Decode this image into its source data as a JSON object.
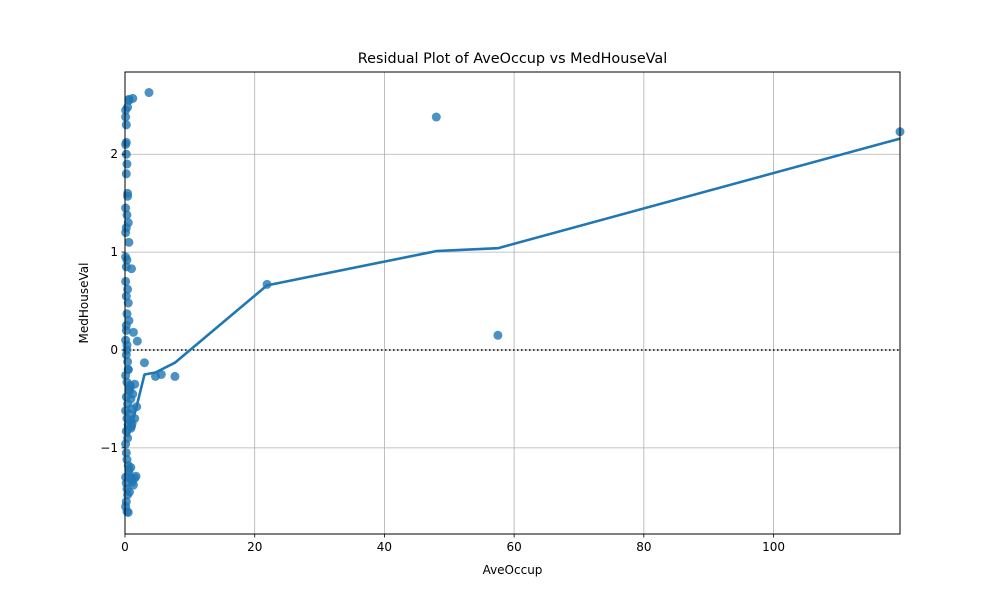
{
  "chart_data": {
    "type": "scatter",
    "title": "Residual Plot of AveOccup vs MedHouseVal",
    "xlabel": "AveOccup",
    "ylabel": "MedHouseVal",
    "xlim": [
      0,
      119.5
    ],
    "ylim": [
      -1.88,
      2.84
    ],
    "xticks": [
      0,
      20,
      40,
      60,
      80,
      100
    ],
    "yticks": [
      -1,
      0,
      1,
      2
    ],
    "grid": true,
    "legend": "none",
    "colors": {
      "series": "#1f77b4",
      "reference_line": "#000000"
    },
    "reference_line": {
      "y": 0,
      "style": "dotted"
    },
    "series": [
      {
        "kind": "points",
        "x": [
          3.7,
          48.0,
          57.5,
          119.5,
          21.9,
          3.0,
          4.7,
          5.6,
          7.7,
          1.9,
          1.3,
          1.0,
          1.2,
          1.5,
          1.8,
          1.5,
          0.6,
          1.0,
          1.3,
          1.5,
          1.7,
          0.1,
          0.1,
          0.2,
          0.1,
          0.2,
          0.3,
          0.2,
          0.4,
          0.1,
          0.3,
          0.5,
          0.2,
          0.6,
          0.1,
          0.3,
          0.2,
          0.1,
          0.4,
          0.2,
          0.5,
          0.3,
          0.6,
          0.2,
          0.1,
          0.3,
          0.2,
          0.4,
          0.5,
          0.1,
          0.3,
          0.6,
          0.2,
          0.4,
          0.1,
          0.3,
          0.5,
          0.2,
          0.4,
          0.1,
          0.2,
          0.3,
          0.5,
          0.6,
          0.1,
          0.2,
          0.3,
          0.4,
          0.2,
          0.1,
          0.3,
          0.5,
          0.2,
          0.4,
          0.6,
          0.8,
          0.9,
          1.0,
          0.7,
          0.8,
          1.1,
          0.9,
          0.7,
          1.2,
          0.8,
          1.0,
          0.6,
          0.9,
          0.7,
          1.1,
          0.8,
          0.5,
          0.3,
          0.2,
          0.4,
          0.1
        ],
        "y": [
          2.63,
          2.38,
          0.15,
          2.23,
          0.67,
          -0.13,
          -0.27,
          -0.25,
          -0.27,
          0.09,
          0.18,
          0.83,
          2.57,
          -0.35,
          -0.58,
          -0.7,
          2.56,
          -1.32,
          -1.38,
          -1.31,
          -1.29,
          2.45,
          2.38,
          2.3,
          2.1,
          2.0,
          1.9,
          1.8,
          1.57,
          1.45,
          1.38,
          1.3,
          1.25,
          1.1,
          0.95,
          0.92,
          0.85,
          0.7,
          0.62,
          0.55,
          0.48,
          0.37,
          0.3,
          0.2,
          0.1,
          0.0,
          -0.05,
          -0.12,
          -0.2,
          -0.26,
          -0.33,
          -0.4,
          -0.48,
          -0.55,
          -0.62,
          -0.7,
          -0.76,
          -0.83,
          -0.9,
          -0.96,
          -1.05,
          -1.12,
          -1.18,
          -1.22,
          -1.3,
          -1.36,
          -1.42,
          -1.48,
          -1.55,
          -1.6,
          -1.65,
          -1.66,
          2.12,
          2.48,
          2.55,
          -0.36,
          -0.5,
          -0.6,
          -0.65,
          -0.72,
          -0.75,
          -0.8,
          -0.42,
          -0.45,
          -0.38,
          -0.78,
          -1.25,
          -1.2,
          -1.45,
          -1.35,
          -1.3,
          -0.2,
          0.05,
          0.25,
          1.6,
          1.2
        ]
      },
      {
        "kind": "lowess",
        "x": [
          0,
          0.1,
          0.3,
          0.5,
          0.8,
          1.2,
          1.7,
          2.3,
          3.0,
          4.7,
          7.7,
          21.9,
          48.0,
          57.5,
          119.5
        ],
        "y": [
          -0.75,
          -0.82,
          -0.87,
          -0.88,
          -0.82,
          -0.72,
          -0.6,
          -0.44,
          -0.25,
          -0.23,
          -0.13,
          0.66,
          1.01,
          1.04,
          2.16
        ]
      }
    ]
  }
}
